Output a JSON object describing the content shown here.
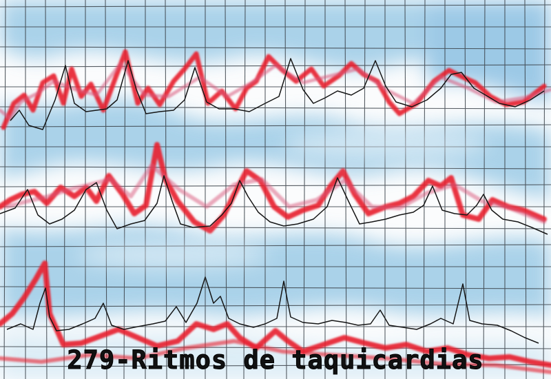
{
  "caption": "279-Ritmos de taquicardias",
  "palette": {
    "paper": "#fbfcfd",
    "grid": "#3a4148",
    "watercolor": "#8fc4e3",
    "red": "#e8202e",
    "pink": "#d9577a",
    "ink": "#151515"
  }
}
